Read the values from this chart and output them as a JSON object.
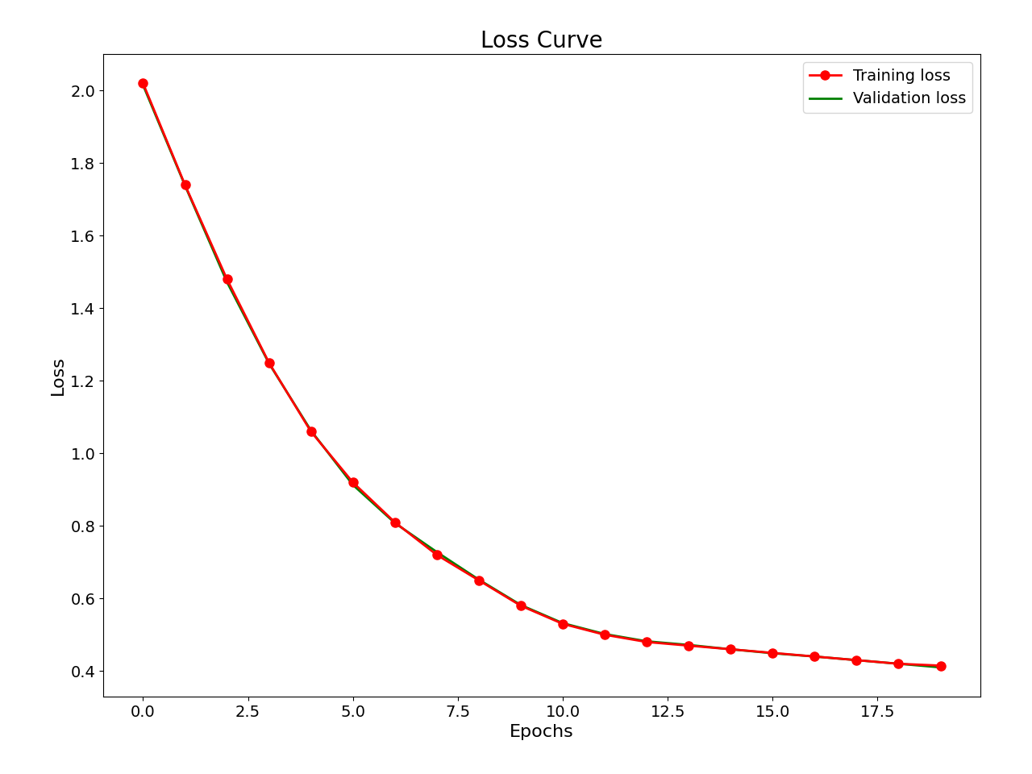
{
  "title": "Loss Curve",
  "xlabel": "Epochs",
  "ylabel": "Loss",
  "training_loss": [
    2.02,
    1.74,
    1.48,
    1.25,
    1.06,
    0.92,
    0.81,
    0.72,
    0.65,
    0.58,
    0.53,
    0.5,
    0.48,
    0.47,
    0.46,
    0.45,
    0.44,
    0.43,
    0.42,
    0.415
  ],
  "validation_loss": [
    2.015,
    1.738,
    1.472,
    1.248,
    1.063,
    0.913,
    0.808,
    0.728,
    0.652,
    0.582,
    0.532,
    0.502,
    0.482,
    0.472,
    0.46,
    0.449,
    0.44,
    0.43,
    0.42,
    0.41
  ],
  "epochs": [
    0,
    1,
    2,
    3,
    4,
    5,
    6,
    7,
    8,
    9,
    10,
    11,
    12,
    13,
    14,
    15,
    16,
    17,
    18,
    19
  ],
  "train_color": "#ff0000",
  "val_color": "#008000",
  "marker": "o",
  "marker_facecolor": "#ff0000",
  "linewidth": 2.0,
  "markersize": 8,
  "title_fontsize": 20,
  "axis_label_fontsize": 16,
  "tick_fontsize": 14,
  "legend_fontsize": 14,
  "background_color": "#ffffff",
  "legend_loc": "upper right"
}
